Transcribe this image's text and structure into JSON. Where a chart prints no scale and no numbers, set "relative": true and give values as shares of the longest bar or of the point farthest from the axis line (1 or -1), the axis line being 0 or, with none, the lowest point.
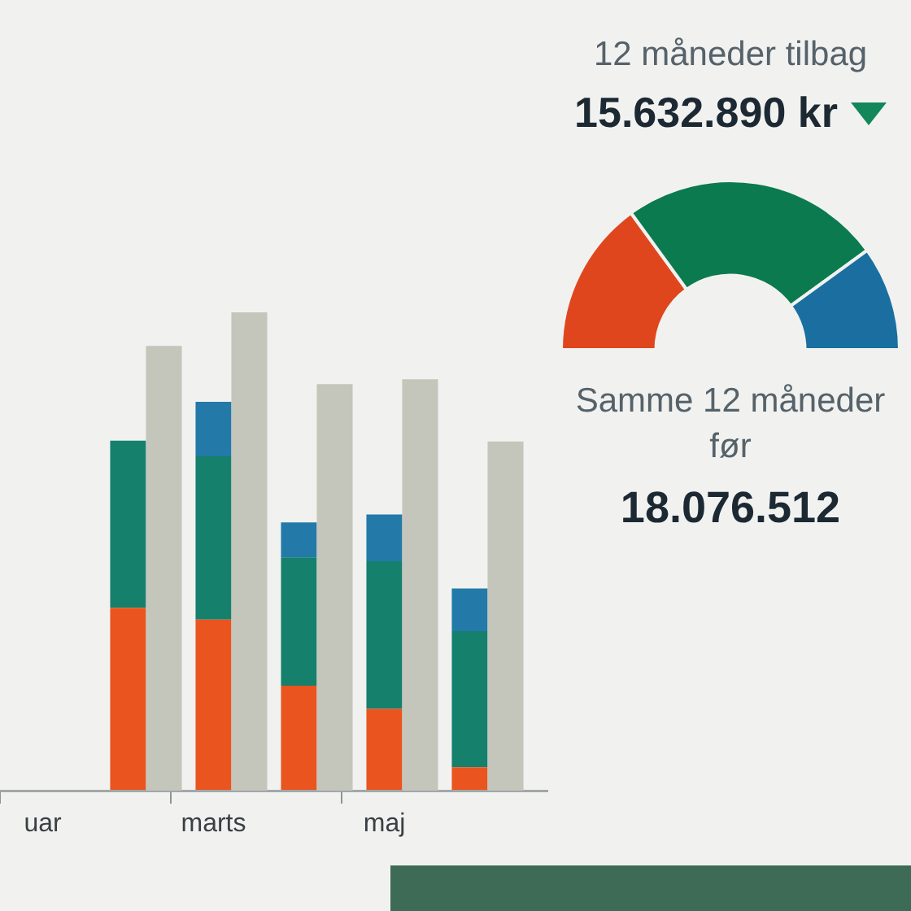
{
  "chart_data": [
    {
      "type": "bar",
      "categories": [
        "uar",
        null,
        "marts",
        null,
        "maj",
        null
      ],
      "relative": true,
      "stacked": true,
      "series": [
        {
          "color": "#e9541f",
          "values": [
            null,
            0.47,
            0.44,
            0.27,
            0.21,
            0.06
          ]
        },
        {
          "color": "#15806c",
          "values": [
            null,
            0.43,
            0.42,
            0.33,
            0.38,
            0.35
          ]
        },
        {
          "color": "#2379a8",
          "values": [
            null,
            null,
            0.14,
            0.09,
            0.12,
            0.11
          ]
        }
      ]
    },
    {
      "type": "bar",
      "categories": [
        null,
        null,
        null,
        null,
        null,
        null
      ],
      "relative": true,
      "color": "#c4c5bb",
      "values": [
        null,
        0.93,
        1,
        0.85,
        0.86,
        0.73
      ]
    },
    {
      "type": "donut",
      "title": "12 måneder tilbag",
      "subtitle": "15.632.890 kr",
      "categories": [
        null,
        null,
        null
      ],
      "values": [
        30,
        50,
        20
      ],
      "colors": [
        "#e0461e",
        "#0b7a4f",
        "#1a6fa0"
      ],
      "annotations": [
        "Samme 12 måneder",
        "før",
        "18.076.512"
      ]
    }
  ]
}
